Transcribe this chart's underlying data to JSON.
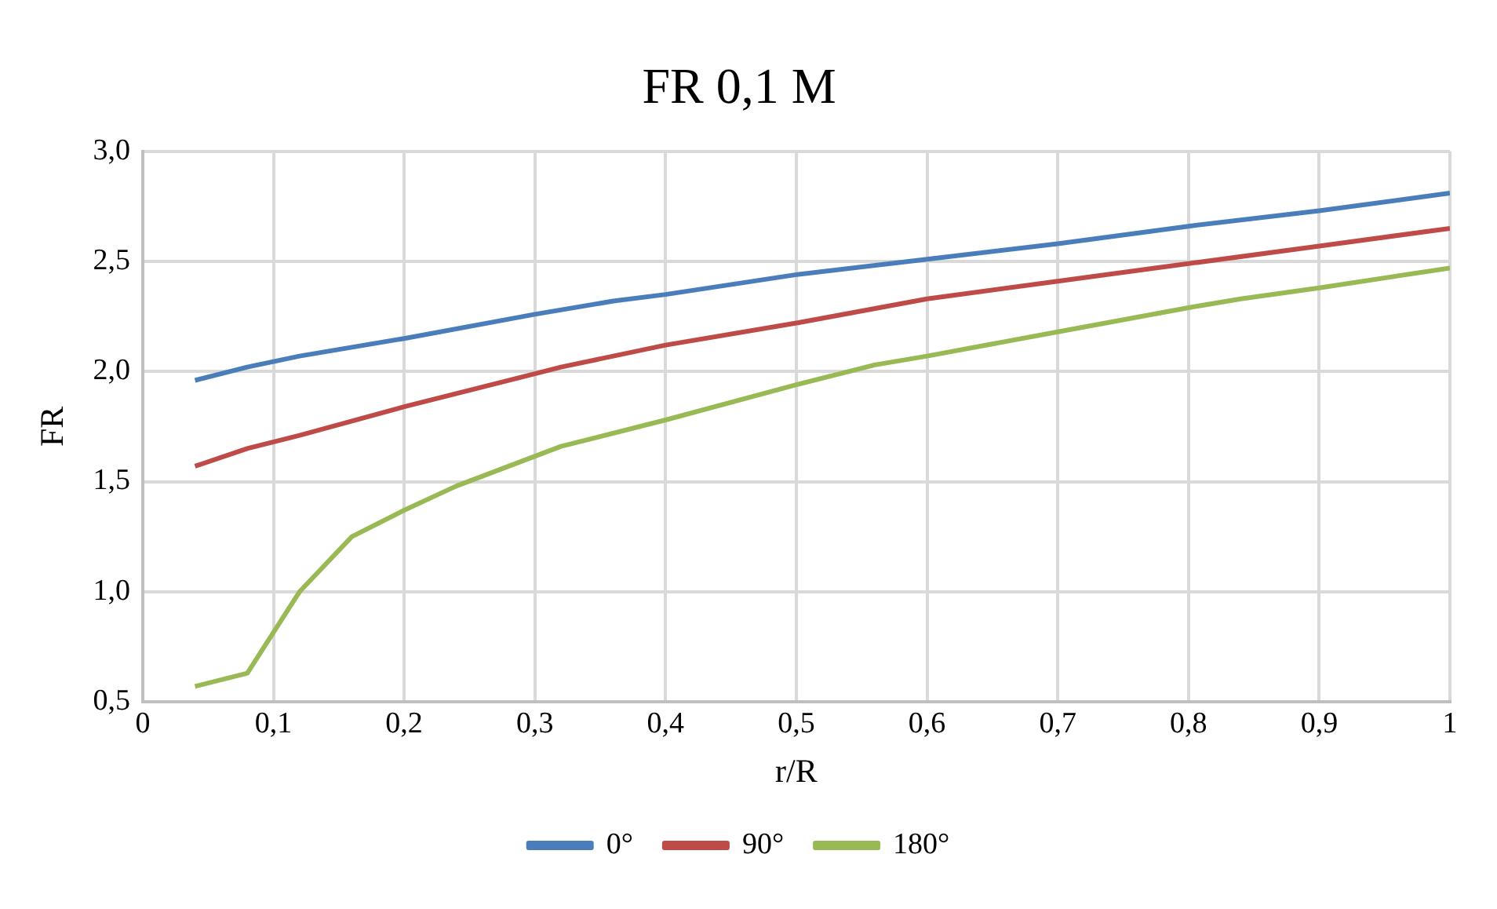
{
  "chart_data": {
    "type": "line",
    "title": "FR 0,1 M",
    "xlabel": "r/R",
    "ylabel": "FR",
    "xlim": [
      0,
      1
    ],
    "xticks": [
      {
        "value": 0,
        "label": "0"
      },
      {
        "value": 0.1,
        "label": "0,1"
      },
      {
        "value": 0.2,
        "label": "0,2"
      },
      {
        "value": 0.3,
        "label": "0,3"
      },
      {
        "value": 0.4,
        "label": "0,4"
      },
      {
        "value": 0.5,
        "label": "0,5"
      },
      {
        "value": 0.6,
        "label": "0,6"
      },
      {
        "value": 0.7,
        "label": "0,7"
      },
      {
        "value": 0.8,
        "label": "0,8"
      },
      {
        "value": 0.9,
        "label": "0,9"
      },
      {
        "value": 1,
        "label": "1"
      }
    ],
    "ylim": [
      0.5,
      3
    ],
    "yticks": [
      {
        "value": 0.5,
        "label": "0,5"
      },
      {
        "value": 1,
        "label": "1,0"
      },
      {
        "value": 1.5,
        "label": "1,5"
      },
      {
        "value": 2,
        "label": "2,0"
      },
      {
        "value": 2.5,
        "label": "2,5"
      },
      {
        "value": 3,
        "label": "3,0"
      }
    ],
    "grid": true,
    "legend": "bottom",
    "marker": "none",
    "line_style": "solid",
    "series": [
      {
        "name": "0°",
        "color": "#4a7ebb",
        "x": [
          0.04,
          0.08,
          0.12,
          0.2,
          0.3,
          0.36,
          0.4,
          0.5,
          0.6,
          0.7,
          0.8,
          0.9,
          1
        ],
        "values": [
          1.96,
          2.02,
          2.07,
          2.15,
          2.26,
          2.32,
          2.35,
          2.44,
          2.51,
          2.58,
          2.66,
          2.73,
          2.81
        ]
      },
      {
        "name": "90°",
        "color": "#be4b48",
        "x": [
          0.04,
          0.08,
          0.12,
          0.2,
          0.3,
          0.32,
          0.4,
          0.5,
          0.6,
          0.7,
          0.8,
          0.9,
          1
        ],
        "values": [
          1.57,
          1.65,
          1.71,
          1.84,
          1.99,
          2.02,
          2.12,
          2.22,
          2.33,
          2.41,
          2.49,
          2.57,
          2.65
        ]
      },
      {
        "name": "180°",
        "color": "#98b954",
        "x": [
          0.04,
          0.08,
          0.12,
          0.16,
          0.2,
          0.24,
          0.32,
          0.4,
          0.5,
          0.56,
          0.6,
          0.7,
          0.8,
          0.84,
          0.9,
          1
        ],
        "values": [
          0.57,
          0.63,
          1.0,
          1.25,
          1.37,
          1.48,
          1.66,
          1.78,
          1.94,
          2.03,
          2.07,
          2.18,
          2.29,
          2.33,
          2.38,
          2.47
        ]
      }
    ]
  }
}
